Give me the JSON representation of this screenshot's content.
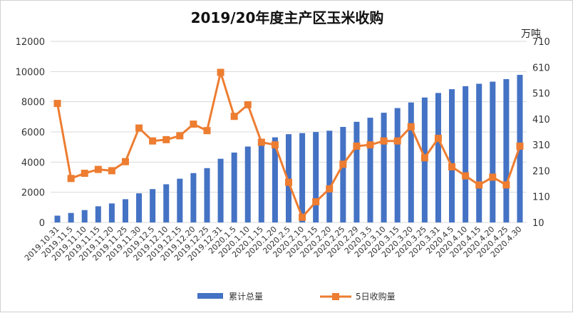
{
  "chart_data": {
    "type": "bar+line",
    "title": "2019/20年度主产区玉米收购",
    "unit_right": "万吨",
    "categories": [
      "2019.10.31",
      "2019.11.5",
      "2019.11.10",
      "2019.11.15",
      "2019.11.20",
      "2019.11.25",
      "2019.11.30",
      "2019.12.5",
      "2019.12.10",
      "2019.12.15",
      "2019.12.20",
      "2019.12.25",
      "2019.12.31",
      "2020.1.5",
      "2020.1.10",
      "2020.1.15",
      "2020.1.20",
      "2020.2.5",
      "2020.2.10",
      "2020.2.15",
      "2020.2.20",
      "2020.2.25",
      "2020.2.29",
      "2020.3.5",
      "2020.3.10",
      "2020.3.15",
      "2020.3.20",
      "2020.3.25",
      "2020.3.31",
      "2020.4.5",
      "2020.4.10",
      "2020.4.15",
      "2020.4.20",
      "2020.4.25",
      "2020.4.30"
    ],
    "series": [
      {
        "name": "累计总量",
        "type": "bar",
        "axis": "left",
        "color": "#4472C4",
        "values": [
          450,
          630,
          820,
          1070,
          1260,
          1540,
          1930,
          2210,
          2530,
          2900,
          3270,
          3600,
          4220,
          4630,
          5030,
          5470,
          5640,
          5850,
          5920,
          5990,
          6080,
          6330,
          6670,
          6940,
          7270,
          7580,
          7950,
          8280,
          8580,
          8830,
          9030,
          9190,
          9330,
          9500,
          9780
        ]
      },
      {
        "name": "5日收购量",
        "type": "line",
        "axis": "right",
        "color": "#ED7D31",
        "values": [
          470,
          180,
          200,
          215,
          210,
          245,
          375,
          325,
          330,
          345,
          390,
          365,
          590,
          420,
          465,
          320,
          310,
          165,
          30,
          90,
          140,
          235,
          305,
          310,
          325,
          325,
          380,
          260,
          335,
          225,
          190,
          155,
          185,
          155,
          305
        ]
      }
    ],
    "left_axis": {
      "min": 0,
      "max": 12000,
      "ticks": [
        "0",
        "2000",
        "4000",
        "6000",
        "8000",
        "10000",
        "12000"
      ]
    },
    "right_axis": {
      "min": 10,
      "max": 710,
      "ticks": [
        "10",
        "110",
        "210",
        "310",
        "410",
        "510",
        "610",
        "710"
      ]
    },
    "legend": {
      "position": "bottom",
      "items": [
        "累计总量",
        "5日收购量"
      ]
    },
    "grid": true
  }
}
